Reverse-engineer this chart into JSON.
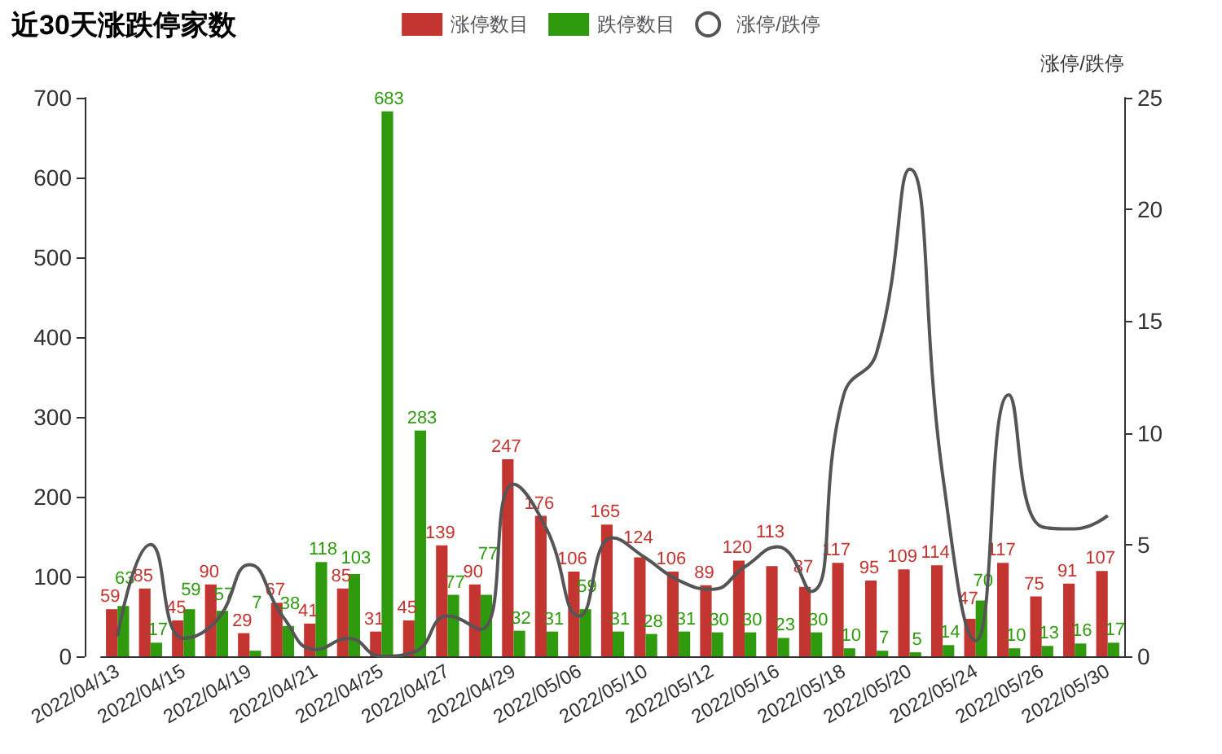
{
  "chart_data": {
    "type": "bar",
    "title": "近30天涨跌停家数",
    "y2label": "涨停/跌停",
    "categories": [
      "2022/04/13",
      null,
      "2022/04/15",
      null,
      "2022/04/19",
      null,
      "2022/04/21",
      null,
      "2022/04/25",
      null,
      "2022/04/27",
      null,
      "2022/04/29",
      null,
      "2022/05/06",
      null,
      "2022/05/10",
      null,
      "2022/05/12",
      null,
      "2022/05/16",
      null,
      "2022/05/18",
      null,
      "2022/05/20",
      null,
      "2022/05/24",
      null,
      "2022/05/26",
      null,
      "2022/05/30"
    ],
    "series": [
      {
        "name": "涨停数目",
        "type": "bar",
        "color": "#c23531",
        "data_labels": true,
        "values": [
          59,
          85,
          45,
          90,
          29,
          67,
          41,
          85,
          31,
          45,
          139,
          90,
          247,
          176,
          106,
          165,
          124,
          106,
          89,
          120,
          113,
          87,
          117,
          95,
          109,
          114,
          47,
          117,
          75,
          91,
          107
        ]
      },
      {
        "name": "跌停数目",
        "type": "bar",
        "color": "#2f9a0e",
        "data_labels": true,
        "values": [
          63,
          17,
          59,
          57,
          7,
          38,
          118,
          103,
          683,
          283,
          77,
          77,
          32,
          31,
          59,
          31,
          28,
          31,
          30,
          30,
          23,
          30,
          10,
          7,
          5,
          14,
          70,
          10,
          13,
          16,
          17
        ]
      },
      {
        "name": "涨停/跌停",
        "type": "line",
        "axis": "y2",
        "color": "#555555",
        "marker": "none",
        "line_style": "solid",
        "values": [
          0.9,
          5.0,
          0.8,
          1.6,
          4.1,
          1.8,
          0.3,
          0.8,
          0.0,
          0.2,
          1.8,
          1.2,
          7.7,
          5.7,
          1.8,
          5.3,
          4.4,
          3.4,
          3.0,
          4.0,
          4.9,
          2.9,
          11.7,
          13.6,
          21.8,
          8.1,
          0.7,
          11.7,
          5.8,
          5.7,
          6.3
        ]
      }
    ],
    "ylim": [
      0,
      700
    ],
    "yticks": [
      0,
      100,
      200,
      300,
      400,
      500,
      600,
      700
    ],
    "y2lim": [
      0,
      25
    ],
    "y2ticks": [
      0,
      5,
      10,
      15,
      20,
      25
    ],
    "grid": false,
    "legend": "top"
  }
}
